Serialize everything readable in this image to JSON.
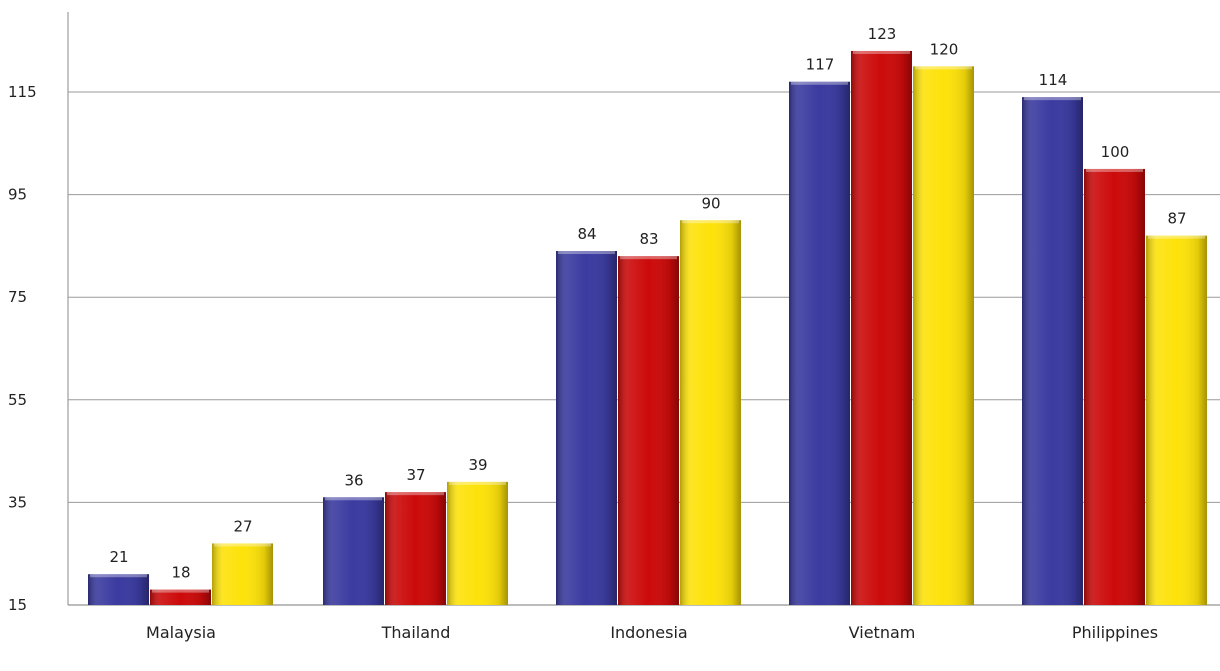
{
  "chart_data": {
    "type": "bar",
    "title": "",
    "xlabel": "",
    "ylabel": "",
    "categories": [
      "Malaysia",
      "Thailand",
      "Indonesia",
      "Vietnam",
      "Philippines"
    ],
    "series": [
      {
        "color": "#3a3aa0",
        "values": [
          21,
          36,
          84,
          117,
          114
        ]
      },
      {
        "color": "#cc0a0a",
        "values": [
          18,
          37,
          83,
          123,
          100
        ]
      },
      {
        "color": "#fde20a",
        "values": [
          27,
          39,
          90,
          120,
          87
        ]
      }
    ],
    "ylim": [
      15,
      130
    ],
    "yticks": [
      15,
      35,
      55,
      75,
      95,
      115
    ],
    "grid": true,
    "legend": "none"
  }
}
